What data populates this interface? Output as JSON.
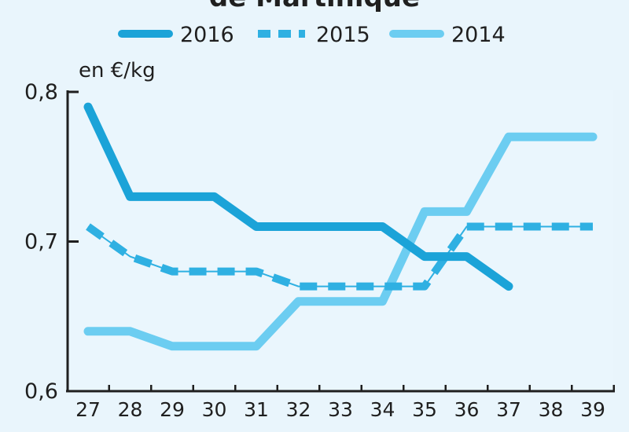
{
  "chart_data": {
    "type": "line",
    "title": "de Martinique",
    "ylabel": "en €/kg",
    "xlabel": "",
    "categories": [
      "27",
      "28",
      "29",
      "30",
      "31",
      "32",
      "33",
      "34",
      "35",
      "36",
      "37",
      "38",
      "39"
    ],
    "ylim": [
      0.6,
      0.8
    ],
    "yticks": [
      "0,6",
      "0,7",
      "0,8"
    ],
    "legend_position": "top",
    "grid": false,
    "series": [
      {
        "name": "2016",
        "color": "#1ba3d8",
        "style": "solid",
        "values": [
          0.79,
          0.73,
          0.73,
          0.73,
          0.71,
          0.71,
          0.71,
          0.71,
          0.69,
          0.69,
          0.67,
          null,
          null
        ]
      },
      {
        "name": "2015",
        "color": "#2fb0e2",
        "style": "dashed",
        "values": [
          0.71,
          0.69,
          0.68,
          0.68,
          0.68,
          0.67,
          0.67,
          0.67,
          0.67,
          0.71,
          0.71,
          0.71,
          0.71
        ]
      },
      {
        "name": "2014",
        "color": "#6ccdf1",
        "style": "solid",
        "values": [
          0.64,
          0.64,
          0.63,
          0.63,
          0.63,
          0.66,
          0.66,
          0.66,
          0.72,
          0.72,
          0.77,
          0.77,
          0.77
        ]
      }
    ]
  }
}
